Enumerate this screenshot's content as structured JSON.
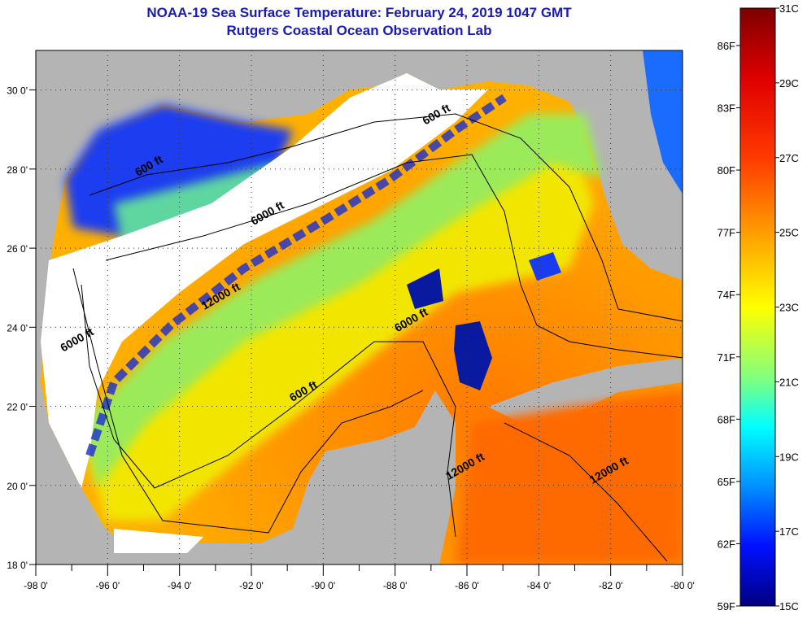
{
  "title": "NOAA-19 Sea Surface Temperature:  February 24, 2019 1047 GMT",
  "subtitle": "Rutgers Coastal Ocean Observation Lab",
  "map": {
    "lon_range": [
      -98,
      -80
    ],
    "lat_range": [
      18,
      31
    ],
    "lat_labels": [
      "18 0'",
      "20 0'",
      "22 0'",
      "24 0'",
      "26 0'",
      "28 0'",
      "30 0'"
    ],
    "lon_labels": [
      "-98 0'",
      "-96 0'",
      "-94 0'",
      "-92 0'",
      "-90 0'",
      "-88 0'",
      "-86 0'",
      "-84 0'",
      "-82 0'",
      "-80 0'"
    ],
    "contour_labels": [
      {
        "text": "600 ft",
        "lon": -94.8,
        "lat": 28.0
      },
      {
        "text": "600 ft",
        "lon": -86.8,
        "lat": 29.3
      },
      {
        "text": "6000 ft",
        "lon": -91.5,
        "lat": 26.8
      },
      {
        "text": "12000 ft",
        "lon": -92.8,
        "lat": 24.7
      },
      {
        "text": "6000 ft",
        "lon": -96.8,
        "lat": 23.6
      },
      {
        "text": "6000 ft",
        "lon": -87.5,
        "lat": 24.1
      },
      {
        "text": "600 ft",
        "lon": -90.5,
        "lat": 22.3
      },
      {
        "text": "12000 ft",
        "lon": -86.0,
        "lat": 20.4
      },
      {
        "text": "12000 ft",
        "lon": -82.0,
        "lat": 20.3
      }
    ],
    "colors": {
      "land": "#b4b4b4",
      "cloud": "#ffffff",
      "contour": "#000000"
    }
  },
  "colorbar": {
    "celsius_labels": [
      "31C",
      "29C",
      "27C",
      "25C",
      "23C",
      "21C",
      "19C",
      "17C",
      "15C"
    ],
    "fahrenheit_labels": [
      "86F",
      "83F",
      "80F",
      "77F",
      "74F",
      "71F",
      "68F",
      "65F",
      "62F",
      "59F"
    ],
    "range_c": [
      15,
      31
    ]
  }
}
